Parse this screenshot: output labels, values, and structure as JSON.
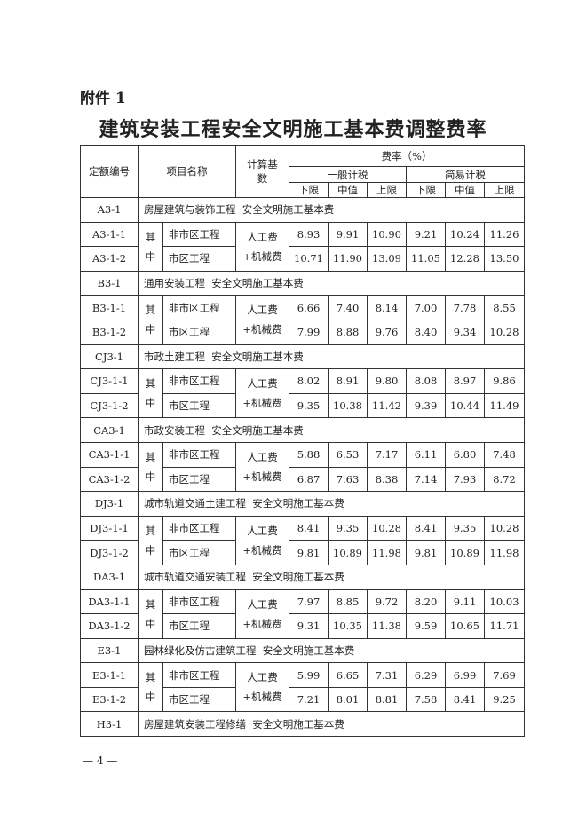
{
  "attachment_label": "附件 1",
  "title": "建筑安装工程安全文明施工基本费调整费率",
  "table": {
    "headers": {
      "code": "定额编号",
      "item": "项目名称",
      "base": "计算基数",
      "rate": "费率（%）",
      "general": "一般计税",
      "simple": "简易计税",
      "sub": [
        "下限",
        "中值",
        "上限",
        "下限",
        "中值",
        "上限"
      ]
    },
    "qizhong": "其中",
    "base_value": "人工费+机械费",
    "groups": [
      {
        "code": "A3-1",
        "name": "房屋建筑与装饰工程  安全文明施工基本费",
        "rows": [
          {
            "code": "A3-1-1",
            "name": "非市区工程",
            "values": [
              "8.93",
              "9.91",
              "10.90",
              "9.21",
              "10.24",
              "11.26"
            ]
          },
          {
            "code": "A3-1-2",
            "name": "市区工程",
            "values": [
              "10.71",
              "11.90",
              "13.09",
              "11.05",
              "12.28",
              "13.50"
            ]
          }
        ]
      },
      {
        "code": "B3-1",
        "name": "通用安装工程  安全文明施工基本费",
        "rows": [
          {
            "code": "B3-1-1",
            "name": "非市区工程",
            "values": [
              "6.66",
              "7.40",
              "8.14",
              "7.00",
              "7.78",
              "8.55"
            ]
          },
          {
            "code": "B3-1-2",
            "name": "市区工程",
            "values": [
              "7.99",
              "8.88",
              "9.76",
              "8.40",
              "9.34",
              "10.28"
            ]
          }
        ]
      },
      {
        "code": "CJ3-1",
        "name": "市政土建工程  安全文明施工基本费",
        "rows": [
          {
            "code": "CJ3-1-1",
            "name": "非市区工程",
            "values": [
              "8.02",
              "8.91",
              "9.80",
              "8.08",
              "8.97",
              "9.86"
            ]
          },
          {
            "code": "CJ3-1-2",
            "name": "市区工程",
            "values": [
              "9.35",
              "10.38",
              "11.42",
              "9.39",
              "10.44",
              "11.49"
            ]
          }
        ]
      },
      {
        "code": "CA3-1",
        "name": "市政安装工程  安全文明施工基本费",
        "rows": [
          {
            "code": "CA3-1-1",
            "name": "非市区工程",
            "values": [
              "5.88",
              "6.53",
              "7.17",
              "6.11",
              "6.80",
              "7.48"
            ]
          },
          {
            "code": "CA3-1-2",
            "name": "市区工程",
            "values": [
              "6.87",
              "7.63",
              "8.38",
              "7.14",
              "7.93",
              "8.72"
            ]
          }
        ]
      },
      {
        "code": "DJ3-1",
        "name": "城市轨道交通土建工程  安全文明施工基本费",
        "rows": [
          {
            "code": "DJ3-1-1",
            "name": "非市区工程",
            "values": [
              "8.41",
              "9.35",
              "10.28",
              "8.41",
              "9.35",
              "10.28"
            ]
          },
          {
            "code": "DJ3-1-2",
            "name": "市区工程",
            "values": [
              "9.81",
              "10.89",
              "11.98",
              "9.81",
              "10.89",
              "11.98"
            ]
          }
        ]
      },
      {
        "code": "DA3-1",
        "name": "城市轨道交通安装工程  安全文明施工基本费",
        "rows": [
          {
            "code": "DA3-1-1",
            "name": "非市区工程",
            "values": [
              "7.97",
              "8.85",
              "9.72",
              "8.20",
              "9.11",
              "10.03"
            ]
          },
          {
            "code": "DA3-1-2",
            "name": "市区工程",
            "values": [
              "9.31",
              "10.35",
              "11.38",
              "9.59",
              "10.65",
              "11.71"
            ]
          }
        ]
      },
      {
        "code": "E3-1",
        "name": "园林绿化及仿古建筑工程  安全文明施工基本费",
        "rows": [
          {
            "code": "E3-1-1",
            "name": "非市区工程",
            "values": [
              "5.99",
              "6.65",
              "7.31",
              "6.29",
              "6.99",
              "7.69"
            ]
          },
          {
            "code": "E3-1-2",
            "name": "市区工程",
            "values": [
              "7.21",
              "8.01",
              "8.81",
              "7.58",
              "8.41",
              "9.25"
            ]
          }
        ]
      },
      {
        "code": "H3-1",
        "name": "房屋建筑安装工程修缮  安全文明施工基本费",
        "rows": []
      }
    ]
  },
  "page_number": "— 4 —"
}
